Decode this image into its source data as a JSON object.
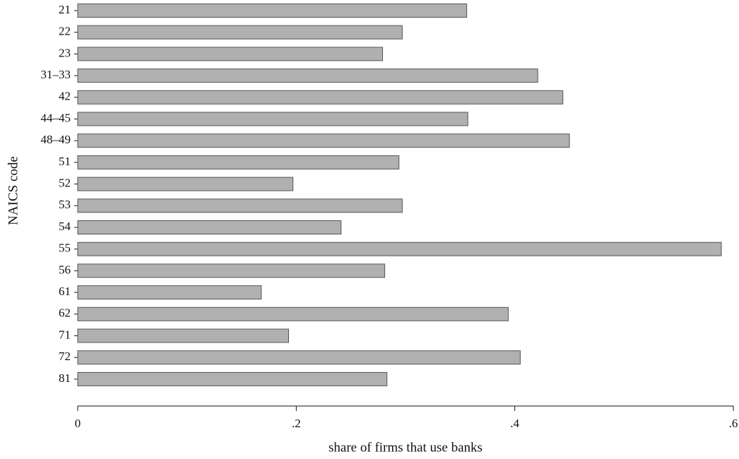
{
  "chart_data": {
    "type": "bar",
    "orientation": "horizontal",
    "x_label": "share of firms that use banks",
    "y_label": "NAICS code",
    "categories": [
      "21",
      "22",
      "23",
      "31–33",
      "42",
      "44–45",
      "48–49",
      "51",
      "52",
      "53",
      "54",
      "55",
      "56",
      "61",
      "62",
      "71",
      "72",
      "81"
    ],
    "values": [
      0.356,
      0.297,
      0.279,
      0.421,
      0.444,
      0.357,
      0.45,
      0.294,
      0.197,
      0.297,
      0.241,
      0.589,
      0.281,
      0.168,
      0.394,
      0.193,
      0.405,
      0.283
    ],
    "color": "#b0b0b0",
    "xlim": [
      0,
      0.6
    ],
    "xticks": [
      0,
      {
        "value": 0.2,
        "label": ".2"
      },
      {
        "value": 0.4,
        "label": ".4"
      },
      {
        "value": 0.6,
        "label": ".6"
      }
    ]
  }
}
